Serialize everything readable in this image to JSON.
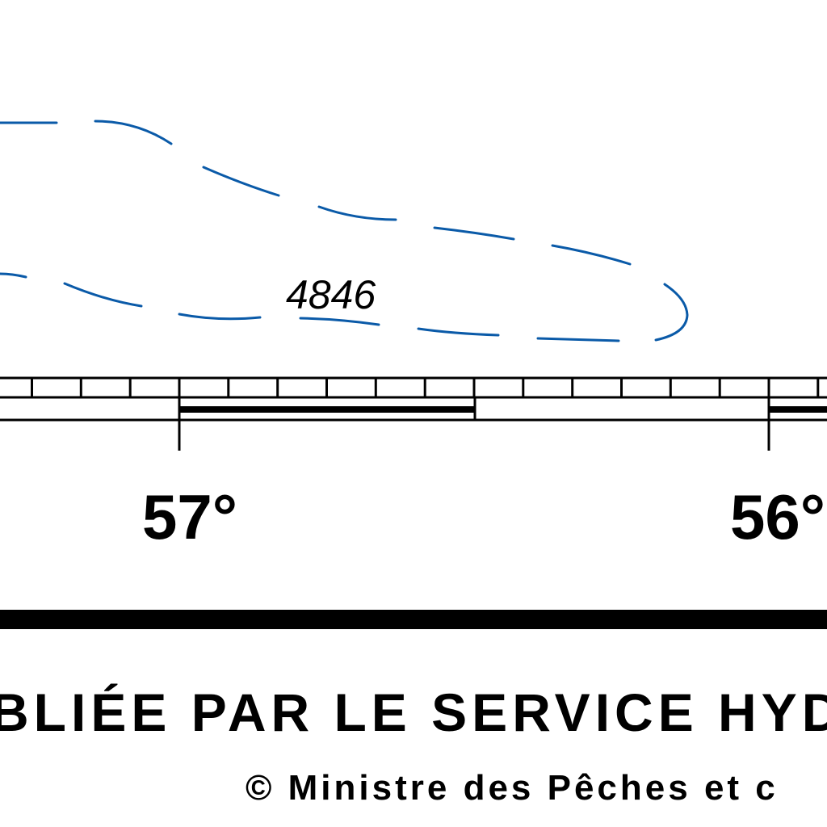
{
  "chart_map": {
    "depth_sounding": "4846",
    "longitude_labels": [
      "57°",
      "56°"
    ],
    "colors": {
      "contour": "#0a5aa8",
      "ink": "#000000"
    }
  },
  "footer": {
    "publisher_line": "BLIÉE PAR LE SERVICE HYDI",
    "copyright_line": "© Ministre des Pêches et c"
  }
}
